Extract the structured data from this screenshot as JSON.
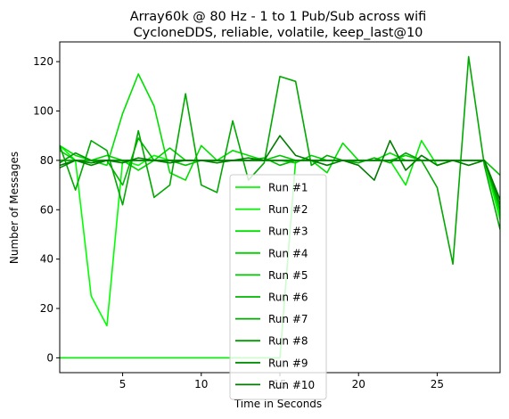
{
  "chart_data": {
    "type": "line",
    "title": "Array60k @ 80 Hz - 1 to 1 Pub/Sub across wifi",
    "subtitle": "CycloneDDS, reliable, volatile, keep_last@10",
    "xlabel": "Time in Seconds",
    "ylabel": "Number of Messages",
    "xlim": [
      1,
      29
    ],
    "ylim": [
      -6,
      128
    ],
    "xticks": [
      5,
      10,
      15,
      20,
      25
    ],
    "yticks": [
      0,
      20,
      40,
      60,
      80,
      100,
      120
    ],
    "grid": false,
    "legend_position": "lower-center",
    "x": [
      1,
      2,
      3,
      4,
      5,
      6,
      7,
      8,
      9,
      10,
      11,
      12,
      13,
      14,
      15,
      16,
      17,
      18,
      19,
      20,
      21,
      22,
      23,
      24,
      25,
      26,
      27,
      28,
      29
    ],
    "series": [
      {
        "name": "Run #1",
        "color": "#00ff00",
        "values": [
          86,
          80,
          25,
          13,
          80,
          78,
          82,
          80,
          80,
          80,
          80,
          80,
          80,
          80,
          80,
          80,
          80,
          80,
          80,
          80,
          80,
          80,
          80,
          80,
          80,
          80,
          80,
          80,
          56
        ]
      },
      {
        "name": "Run #2",
        "color": "#00ee00",
        "values": [
          0,
          0,
          0,
          0,
          0,
          0,
          0,
          0,
          0,
          0,
          0,
          0,
          0,
          0,
          0,
          80,
          80,
          80,
          80,
          80,
          80,
          80,
          70,
          88,
          78,
          80,
          80,
          80,
          58
        ]
      },
      {
        "name": "Run #3",
        "color": "#00e000",
        "values": [
          86,
          82,
          80,
          78,
          99,
          115,
          102,
          75,
          72,
          86,
          80,
          84,
          82,
          80,
          80,
          80,
          80,
          75,
          87,
          80,
          80,
          83,
          80,
          80,
          80,
          80,
          80,
          80,
          60
        ]
      },
      {
        "name": "Run #4",
        "color": "#00d200",
        "values": [
          84,
          80,
          80,
          82,
          80,
          76,
          80,
          85,
          80,
          80,
          80,
          80,
          80,
          80,
          80,
          79,
          82,
          80,
          80,
          80,
          80,
          80,
          82,
          80,
          80,
          80,
          80,
          80,
          62
        ]
      },
      {
        "name": "Run #5",
        "color": "#00c400",
        "values": [
          80,
          80,
          80,
          80,
          80,
          80,
          80,
          80,
          78,
          80,
          80,
          80,
          80,
          80,
          82,
          80,
          80,
          80,
          80,
          80,
          80,
          80,
          80,
          80,
          80,
          80,
          80,
          80,
          74
        ]
      },
      {
        "name": "Run #6",
        "color": "#00b600",
        "values": [
          80,
          80,
          80,
          80,
          70,
          89,
          80,
          80,
          80,
          80,
          80,
          80,
          80,
          81,
          78,
          80,
          80,
          80,
          80,
          80,
          80,
          80,
          80,
          80,
          80,
          80,
          80,
          80,
          60
        ]
      },
      {
        "name": "Run #7",
        "color": "#00a800",
        "values": [
          86,
          68,
          88,
          84,
          62,
          92,
          65,
          70,
          107,
          70,
          67,
          96,
          72,
          79,
          114,
          112,
          78,
          82,
          80,
          79,
          81,
          79,
          83,
          80,
          69,
          38,
          122,
          78,
          52
        ]
      },
      {
        "name": "Run #8",
        "color": "#009a00",
        "values": [
          79,
          83,
          80,
          80,
          80,
          80,
          80,
          80,
          80,
          80,
          80,
          80,
          80,
          80,
          80,
          80,
          80,
          80,
          80,
          80,
          80,
          80,
          80,
          80,
          80,
          80,
          80,
          80,
          62
        ]
      },
      {
        "name": "Run #9",
        "color": "#008c00",
        "values": [
          77,
          80,
          78,
          80,
          80,
          80,
          80,
          80,
          80,
          80,
          80,
          80,
          80,
          80,
          80,
          80,
          80,
          80,
          80,
          80,
          80,
          80,
          80,
          80,
          80,
          80,
          80,
          80,
          64
        ]
      },
      {
        "name": "Run #10",
        "color": "#007c00",
        "values": [
          78,
          80,
          79,
          80,
          79,
          81,
          80,
          79,
          80,
          80,
          79,
          80,
          81,
          80,
          90,
          82,
          80,
          78,
          80,
          78,
          72,
          88,
          76,
          82,
          78,
          80,
          78,
          80,
          64
        ]
      }
    ]
  }
}
